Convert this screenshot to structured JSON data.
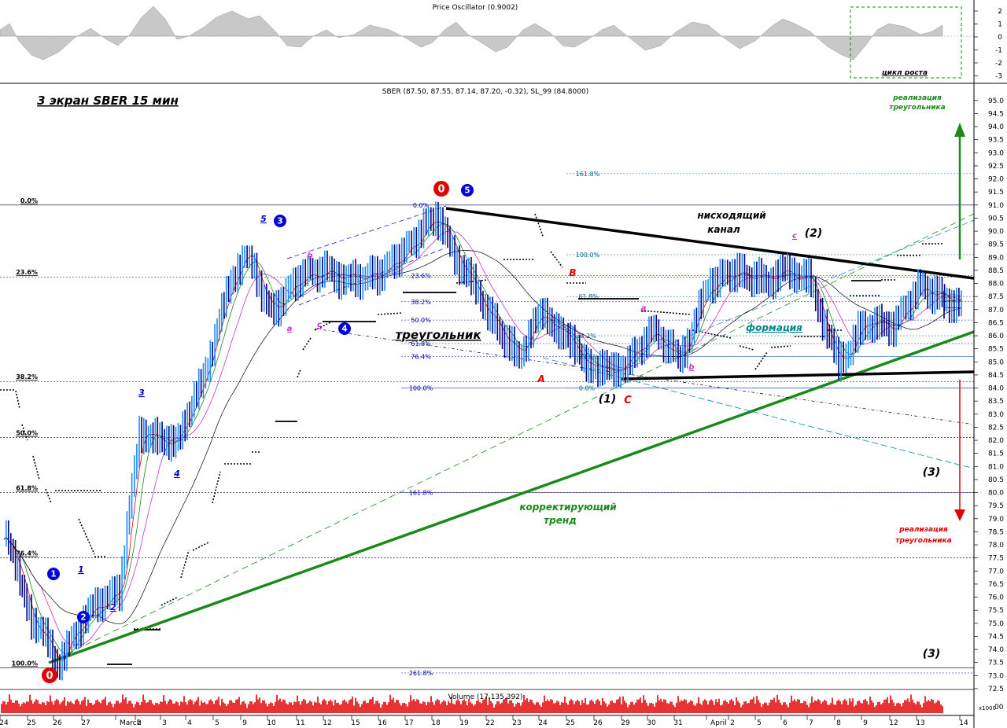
{
  "oscillator": {
    "title": "Price Oscillator (0.9002)",
    "ticks": [
      "2",
      "1",
      "0",
      "-1",
      "-2",
      "-3"
    ],
    "cycle_label": "цикл роста"
  },
  "main": {
    "header": "SBER (87.50, 87.55, 87.14, 87.20, -0.32), SL_99 (84.8000)",
    "title": "3 экран SBER  15 мин",
    "price_ticks": [
      "95.0",
      "94.5",
      "94.0",
      "93.5",
      "93.0",
      "92.5",
      "92.0",
      "91.5",
      "91.0",
      "90.5",
      "90.0",
      "89.5",
      "89.0",
      "88.5",
      "88.0",
      "87.5",
      "87.0",
      "86.5",
      "86.0",
      "85.5",
      "85.0",
      "84.5",
      "84.0",
      "83.5",
      "83.0",
      "82.5",
      "82.0",
      "81.5",
      "81.0",
      "80.5",
      "80.0",
      "79.5",
      "79.0",
      "78.5",
      "78.0",
      "77.5",
      "77.0",
      "76.5",
      "76.0",
      "75.5",
      "75.0",
      "74.5",
      "74.0",
      "73.5",
      "73.0",
      "72.5"
    ],
    "left_fib": [
      "0.0%",
      "23.6%",
      "38.2%",
      "50.0%",
      "61.8%",
      "76.4%",
      "100.0%"
    ],
    "mid_fib": [
      "0.0%",
      "23.6%",
      "38.2%",
      "50.0%",
      "61.8%",
      "76.4%",
      "100.0%",
      "161.8%",
      "261.8%"
    ],
    "right_fib": [
      "161.8%",
      "100.0%",
      "61.8%",
      "38.2%",
      "23.6%",
      "0.0%"
    ],
    "annotations": {
      "descending_channel": "нисходящий",
      "descending_channel_2": "канал",
      "triangle": "треугольник",
      "formation": "формация",
      "corrective_trend": "корректирующий",
      "corrective_trend_2": "тренд",
      "realization_top": "реализация",
      "realization_top_2": "треугольника",
      "realization_bottom": "реализация",
      "realization_bottom_2": "треугольника",
      "label_1": "(1)",
      "label_2": "(2)",
      "label_3a": "(3)",
      "label_3b": "(3)",
      "wave_A": "A",
      "wave_B": "B",
      "wave_C": "C",
      "wave_a1": "a",
      "wave_b1": "b",
      "wave_c1": "c",
      "wave_a2": "a",
      "wave_b2": "b",
      "wave_c2": "c",
      "wave_1": "1",
      "wave_2": "2",
      "wave_3": "3",
      "wave_4": "4",
      "wave_5": "5",
      "circle_0a": "0",
      "circle_0b": "0",
      "circle_1": "1",
      "circle_2": "2",
      "circle_3": "3",
      "circle_4": "4",
      "circle_5": "5"
    }
  },
  "volume": {
    "title": "Volume (17,135,392)",
    "scale": "x1000",
    "tick": "00"
  },
  "x_axis": [
    "24",
    "25",
    "26",
    "27",
    "March",
    "2",
    "3",
    "4",
    "5",
    "9",
    "10",
    "11",
    "12",
    "15",
    "16",
    "17",
    "18",
    "19",
    "22",
    "23",
    "24",
    "25",
    "26",
    "29",
    "30",
    "31",
    "April",
    "2",
    "5",
    "6",
    "7",
    "8",
    "9",
    "12",
    "13",
    "14"
  ],
  "colors": {
    "up": "#1a8cff",
    "down": "#000080",
    "green": "#1a8a1a",
    "red": "#e00000",
    "magenta": "#cc33cc",
    "volume": "#e00000",
    "osc": "#c0c0c0"
  },
  "chart_data": {
    "type": "line",
    "title": "3 экран SBER  15 мин",
    "xlabel": "",
    "ylabel": "",
    "ylim": [
      72.4,
      95.5
    ],
    "x": [
      "24",
      "25",
      "26",
      "27",
      "March",
      "2",
      "3",
      "4",
      "5",
      "9",
      "10",
      "11",
      "12",
      "15",
      "16",
      "17",
      "18",
      "19",
      "22",
      "23",
      "24",
      "25",
      "26",
      "29",
      "30",
      "31",
      "April",
      "2",
      "5",
      "6",
      "7",
      "8",
      "9",
      "12",
      "13",
      "14"
    ],
    "series": [
      {
        "values": [
          78.6,
          75.2,
          73.5,
          75.3,
          76.2,
          82.4,
          81.8,
          82.8,
          86.3,
          89.4,
          86.9,
          88.2,
          88.4,
          88.2,
          88.4,
          89.3,
          90.6,
          88.5,
          86.7,
          85.3,
          86.9,
          85.7,
          84.6,
          84.9,
          86.1,
          85.1,
          87.9,
          88.4,
          88.2,
          88.4,
          88.1,
          84.8,
          86.6,
          86.3,
          87.8,
          87.2
        ]
      }
    ],
    "grid": true,
    "legend": "none"
  }
}
